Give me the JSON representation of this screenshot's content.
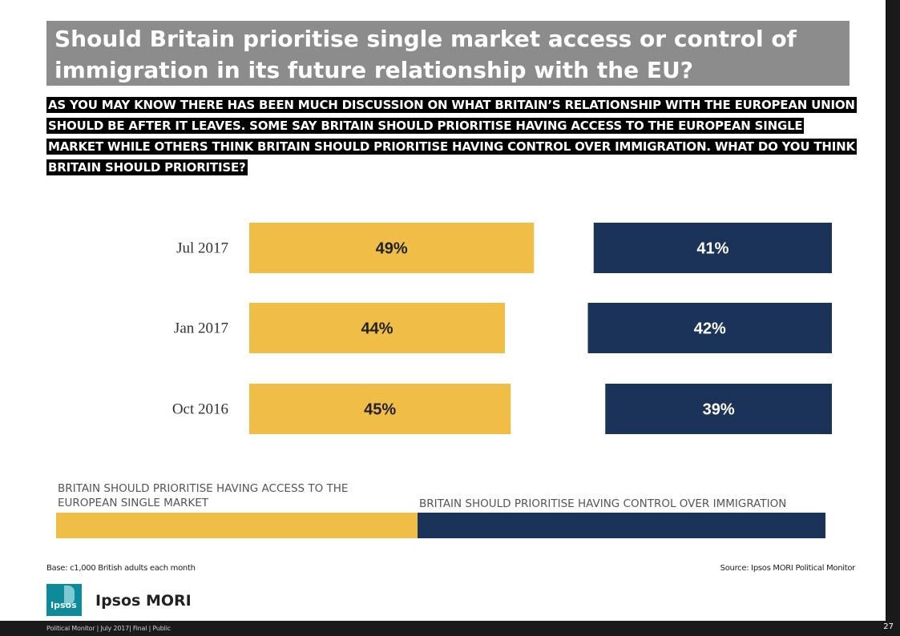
{
  "title": "Should Britain prioritise single market access or control of immigration in its future relationship with the EU?",
  "question": "AS YOU MAY KNOW THERE HAS BEEN MUCH DISCUSSION ON WHAT BRITAIN’S RELATIONSHIP WITH THE EUROPEAN UNION SHOULD BE AFTER IT LEAVES. SOME SAY BRITAIN SHOULD PRIORITISE HAVING ACCESS TO THE EUROPEAN SINGLE MARKET WHILE OTHERS THINK BRITAIN SHOULD PRIORITISE HAVING CONTROL OVER IMMIGRATION. WHAT DO YOU THINK BRITAIN SHOULD PRIORITISE?",
  "chart_data": {
    "type": "bar",
    "orientation": "horizontal",
    "layout": "diverging",
    "categories": [
      "Jul 2017",
      "Jan 2017",
      "Oct 2016"
    ],
    "series": [
      {
        "name": "BRITAIN SHOULD PRIORITISE HAVING ACCESS TO THE EUROPEAN SINGLE MARKET",
        "values": [
          49,
          44,
          45
        ],
        "labels": [
          "49%",
          "44%",
          "45%"
        ],
        "color": "#f0be47",
        "label_color": "#222222"
      },
      {
        "name": "BRITAIN SHOULD PRIORITISE HAVING CONTROL OVER IMMIGRATION",
        "values": [
          41,
          42,
          39
        ],
        "labels": [
          "41%",
          "42%",
          "39%"
        ],
        "color": "#1b3259",
        "label_color": "#ffffff"
      }
    ],
    "unit": "%",
    "xlim": [
      0,
      100
    ]
  },
  "legend": {
    "left_label": "BRITAIN SHOULD PRIORITISE HAVING ACCESS TO THE EUROPEAN SINGLE MARKET",
    "right_label": "BRITAIN SHOULD PRIORITISE HAVING CONTROL OVER IMMIGRATION"
  },
  "base_note": "Base: c1,000 British adults each month",
  "source_note": "Source: Ipsos MORI Political Monitor",
  "logo_text": "Ipsos",
  "brand_name": "Ipsos MORI",
  "footer": "Political Monitor | July 2017| Final | Public",
  "page_number": "27"
}
